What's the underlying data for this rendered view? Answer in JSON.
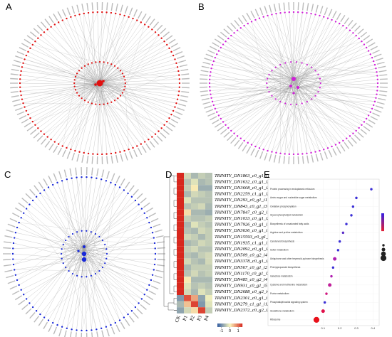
{
  "panels": [
    {
      "letter": "A"
    },
    {
      "letter": "B"
    },
    {
      "letter": "C"
    },
    {
      "letter": "D",
      "heatmap": {
        "rows": [
          "TRINITY_DN1863_c0_g1_i1",
          "TRINITY_DN1632_c0_g1_i3",
          "TRINITY_DN3608_c0_g1_i2",
          "TRINITY_DN2259_c1_g1_i3",
          "TRINITY_DN293_c0_g1_i1",
          "TRINITY_DN843_c0_g1_i3",
          "TRINITY_DN7847_c0_g2_i1",
          "TRINITY_DN1033_c0_g1_i3",
          "TRINITY_DN7926_c0_g1_i1",
          "TRINITY_DN3636_c0_g1_i1",
          "TRINITY_DN15593_c0_g1_i1",
          "TRINITY_DN1935_c1_g1_i1",
          "TRINITY_DN2092_c0_g1_i3",
          "TRINITY_DN509_c0_g2_i4",
          "TRINITY_DN3378_c0_g1_i2",
          "TRINITY_DN567_c0_g1_i2",
          "TRINITY_DN1170_c0_g1_i7",
          "TRINITY_DN485_c0_g2_i4",
          "TRINITY_DN931_c0_g1_i5",
          "TRINITY_DN2688_c0_g2_i4",
          "TRINITY_DN2301_c0_g1_i1",
          "TRINITY_DN279_c1_g1_i12",
          "TRINITY_DN2372_c0_g2_i3"
        ],
        "columns": [
          "CK",
          "P1",
          "P2",
          "P3",
          "P4"
        ],
        "values": [
          [
            1.8,
            -0.3,
            -0.6,
            -0.4,
            -0.5
          ],
          [
            1.8,
            -0.5,
            -0.2,
            -0.6,
            -0.5
          ],
          [
            1.7,
            -0.4,
            0.1,
            -0.7,
            -0.7
          ],
          [
            1.8,
            -0.6,
            -0.3,
            -0.4,
            -0.5
          ],
          [
            1.7,
            -0.2,
            -0.5,
            -0.5,
            -0.5
          ],
          [
            1.8,
            -0.5,
            -0.4,
            -0.3,
            -0.6
          ],
          [
            1.7,
            0.2,
            -0.6,
            -0.6,
            -0.7
          ],
          [
            1.8,
            -0.4,
            -0.5,
            -0.5,
            -0.4
          ],
          [
            1.7,
            -0.6,
            -0.2,
            -0.4,
            -0.5
          ],
          [
            1.8,
            -0.5,
            -0.6,
            -0.3,
            -0.4
          ],
          [
            1.7,
            -0.3,
            -0.4,
            -0.6,
            -0.4
          ],
          [
            1.8,
            -0.6,
            -0.5,
            -0.3,
            -0.4
          ],
          [
            1.7,
            -0.4,
            -0.3,
            -0.5,
            -0.5
          ],
          [
            1.8,
            -0.5,
            -0.6,
            -0.4,
            -0.3
          ],
          [
            1.7,
            -0.3,
            -0.5,
            -0.6,
            -0.3
          ],
          [
            1.8,
            -0.6,
            -0.4,
            -0.4,
            -0.4
          ],
          [
            1.7,
            -0.5,
            -0.3,
            -0.5,
            -0.4
          ],
          [
            1.7,
            0.1,
            -0.6,
            -0.6,
            -0.6
          ],
          [
            1.6,
            -0.2,
            -0.5,
            -0.4,
            -0.5
          ],
          [
            1.5,
            -0.3,
            -0.6,
            -0.2,
            -0.4
          ],
          [
            -0.9,
            1.2,
            0.6,
            -0.8,
            -0.1
          ],
          [
            -0.6,
            0.4,
            1.3,
            -0.9,
            -0.2
          ],
          [
            -0.8,
            -0.3,
            0.2,
            1.3,
            -0.4
          ]
        ],
        "colorlim": [
          -1.5,
          1.5
        ],
        "legend_ticks": [
          -1,
          0,
          1
        ]
      }
    },
    {
      "letter": "E",
      "dotplot": {
        "categories": [
          "Protein processing in endoplasmic reticulum",
          "Amino sugar and nucleotide sugar metabolism",
          "Oxidative phosphorylation",
          "Glycerophospholipid metabolism",
          "Biosynthesis of unsaturated fatty acids",
          "Arginine and proline metabolism",
          "Carotenoid biosynthesis",
          "Sulfur metabolism",
          "Ubiquinone and other terpenoid-quinone biosynthesis",
          "Phenylpropanoid biosynthesis",
          "Galactose metabolism",
          "Cysteine and methionine metabolism",
          "Purine metabolism",
          "Phosphatidylinositol signaling system",
          "Glutathione metabolism",
          "Ribosome"
        ],
        "values": [
          0.39,
          0.3,
          0.28,
          0.27,
          0.24,
          0.22,
          0.2,
          0.19,
          0.17,
          0.16,
          0.15,
          0.14,
          0.12,
          0.11,
          0.1,
          0.06
        ],
        "sizes": [
          1,
          1,
          1,
          1,
          1,
          1,
          1,
          1,
          2,
          1,
          1,
          2,
          1,
          1,
          2,
          4
        ],
        "colors": [
          "#3b2fd6",
          "#3b2fd6",
          "#3b2fd6",
          "#3b2fd6",
          "#3b2fd6",
          "#5a2cc8",
          "#3b2fd6",
          "#3b2fd6",
          "#b020b0",
          "#3b2fd6",
          "#b020b0",
          "#c0209a",
          "#d01880",
          "#3b2fd6",
          "#e0104a",
          "#e8101a"
        ],
        "xlim": [
          0.0,
          0.42
        ],
        "xticks": [
          0.1,
          0.2,
          0.3,
          0.4
        ]
      }
    }
  ]
}
